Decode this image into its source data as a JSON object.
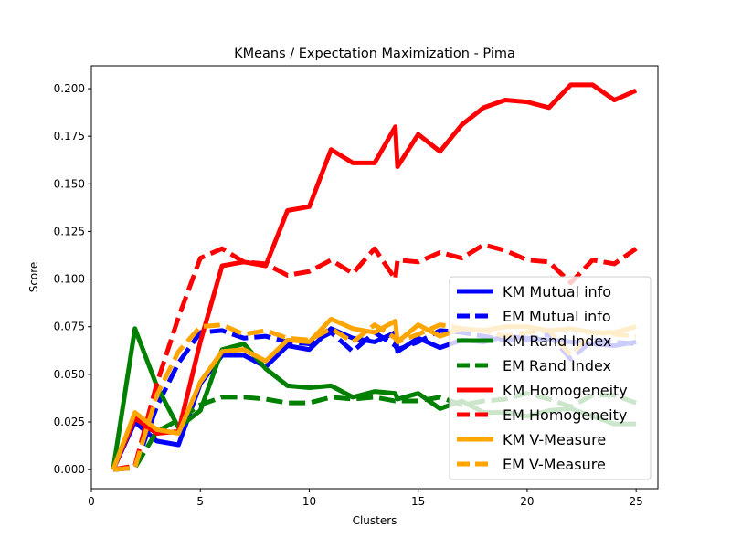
{
  "chart_data": {
    "type": "line",
    "title": "KMeans / Expectation Maximization - Pima",
    "xlabel": "Clusters",
    "ylabel": "Score",
    "xlim": [
      0,
      26
    ],
    "ylim": [
      -0.01,
      0.212
    ],
    "xticks": [
      0,
      5,
      10,
      15,
      20,
      25
    ],
    "yticks": [
      0.0,
      0.025,
      0.05,
      0.075,
      0.1,
      0.125,
      0.15,
      0.175,
      0.2
    ],
    "ytick_labels": [
      "0.000",
      "0.025",
      "0.050",
      "0.075",
      "0.100",
      "0.125",
      "0.150",
      "0.175",
      "0.200"
    ],
    "grid": false,
    "legend_position": "lower-right",
    "x": [
      1,
      2,
      3,
      4,
      5,
      6,
      7,
      8,
      9,
      10,
      11,
      12,
      13,
      13.95,
      14.05,
      15,
      16,
      17,
      18,
      19,
      20,
      21,
      22,
      23,
      24,
      25
    ],
    "series": [
      {
        "name": "KM Mutual info",
        "color": "#0000ff",
        "dash": "solid",
        "values": [
          0.0,
          0.025,
          0.015,
          0.013,
          0.045,
          0.06,
          0.06,
          0.054,
          0.065,
          0.063,
          0.074,
          0.069,
          0.067,
          0.072,
          0.062,
          0.069,
          0.064,
          0.068,
          0.067,
          0.07,
          0.069,
          0.068,
          0.067,
          0.066,
          0.065,
          0.067
        ]
      },
      {
        "name": "EM Mutual info",
        "color": "#0000ff",
        "dash": "dashed",
        "values": [
          0.0,
          0.001,
          0.033,
          0.056,
          0.072,
          0.073,
          0.069,
          0.07,
          0.067,
          0.066,
          0.072,
          0.062,
          0.072,
          0.065,
          0.063,
          0.067,
          0.073,
          0.072,
          0.07,
          0.068,
          0.068,
          0.071,
          0.058,
          0.068,
          0.067,
          0.066
        ]
      },
      {
        "name": "KM Rand Index",
        "color": "#008000",
        "dash": "solid",
        "values": [
          0.0,
          0.074,
          0.044,
          0.022,
          0.031,
          0.063,
          0.066,
          0.053,
          0.044,
          0.043,
          0.044,
          0.038,
          0.041,
          0.04,
          0.037,
          0.04,
          0.032,
          0.036,
          0.03,
          0.03,
          0.028,
          0.031,
          0.032,
          0.028,
          0.024,
          0.024
        ]
      },
      {
        "name": "EM Rand Index",
        "color": "#008000",
        "dash": "dashed",
        "values": [
          0.0,
          0.001,
          0.02,
          0.026,
          0.034,
          0.038,
          0.038,
          0.037,
          0.035,
          0.035,
          0.038,
          0.037,
          0.038,
          0.036,
          0.036,
          0.036,
          0.038,
          0.034,
          0.036,
          0.037,
          0.04,
          0.037,
          0.033,
          0.039,
          0.039,
          0.035
        ]
      },
      {
        "name": "KM Homogeneity",
        "color": "#ff0000",
        "dash": "solid",
        "values": [
          0.0,
          0.027,
          0.019,
          0.02,
          0.067,
          0.107,
          0.109,
          0.107,
          0.136,
          0.138,
          0.168,
          0.161,
          0.161,
          0.18,
          0.159,
          0.176,
          0.167,
          0.181,
          0.19,
          0.194,
          0.193,
          0.19,
          0.202,
          0.202,
          0.194,
          0.199
        ]
      },
      {
        "name": "EM Homogeneity",
        "color": "#ff0000",
        "dash": "dashed",
        "values": [
          0.0,
          0.002,
          0.045,
          0.08,
          0.111,
          0.116,
          0.109,
          0.108,
          0.102,
          0.104,
          0.11,
          0.103,
          0.116,
          0.1,
          0.11,
          0.109,
          0.114,
          0.111,
          0.118,
          0.115,
          0.11,
          0.109,
          0.098,
          0.11,
          0.108,
          0.116
        ]
      },
      {
        "name": "KM V-Measure",
        "color": "#ffa500",
        "dash": "solid",
        "values": [
          0.0,
          0.03,
          0.021,
          0.019,
          0.046,
          0.062,
          0.063,
          0.057,
          0.068,
          0.067,
          0.079,
          0.074,
          0.072,
          0.078,
          0.067,
          0.076,
          0.07,
          0.074,
          0.073,
          0.075,
          0.075,
          0.073,
          0.074,
          0.072,
          0.072,
          0.075
        ]
      },
      {
        "name": "EM V-Measure",
        "color": "#ffa500",
        "dash": "dashed",
        "values": [
          0.0,
          0.001,
          0.039,
          0.062,
          0.075,
          0.076,
          0.071,
          0.073,
          0.069,
          0.068,
          0.074,
          0.067,
          0.076,
          0.069,
          0.067,
          0.071,
          0.076,
          0.074,
          0.073,
          0.07,
          0.072,
          0.073,
          0.06,
          0.072,
          0.071,
          0.07
        ]
      }
    ]
  }
}
